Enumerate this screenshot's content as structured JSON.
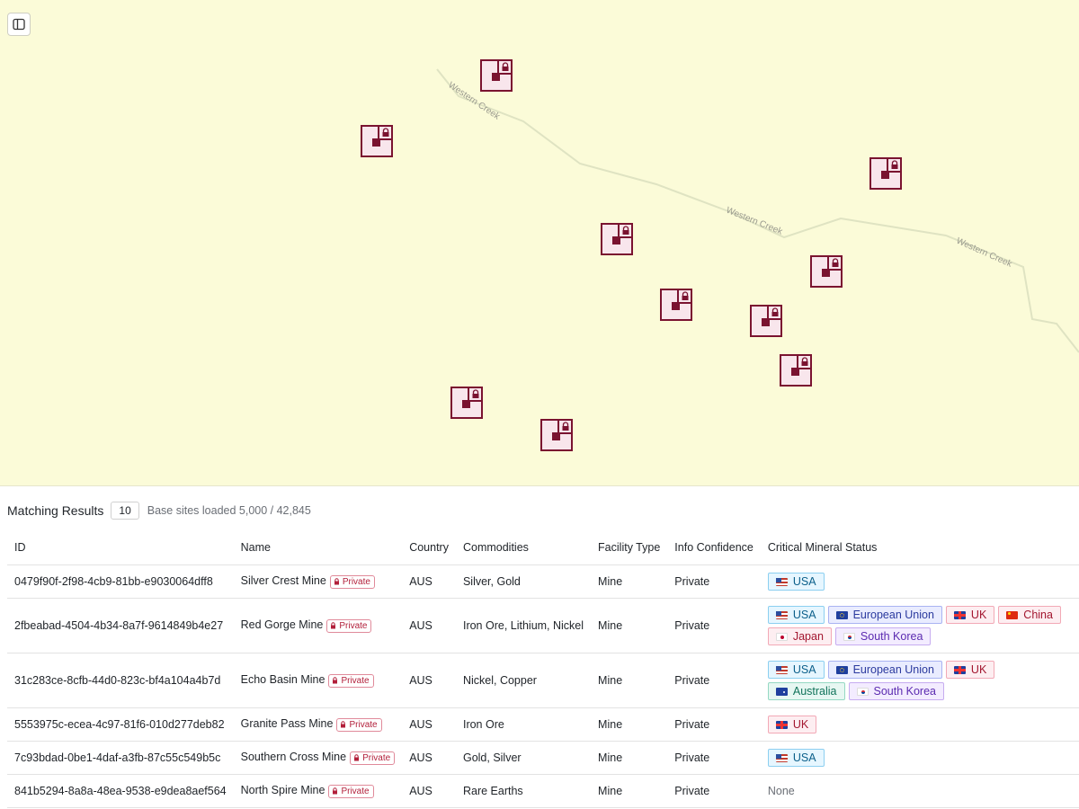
{
  "map": {
    "creek_labels": [
      "Western Creek",
      "Western Creek",
      "Western Creek"
    ],
    "colors": {
      "background": "#fbfbd8",
      "site_fill": "#f8e6ec",
      "site_stroke": "#7a1330"
    },
    "site_icon": "private-mine-lock-icon",
    "toggle_icon": "sidebar-toggle-icon",
    "site_count": 10
  },
  "results": {
    "title": "Matching Results",
    "count": "10",
    "loaded_text": "Base sites loaded 5,000 / 42,845",
    "columns": [
      "ID",
      "Name",
      "Country",
      "Commodities",
      "Facility Type",
      "Info Confidence",
      "Critical Mineral Status"
    ],
    "private_label": "Private",
    "rows": [
      {
        "id": "0479f90f-2f98-4cb9-81bb-e9030064dff8",
        "name": "Silver Crest Mine",
        "country": "AUS",
        "commodities": "Silver, Gold",
        "facility_type": "Mine",
        "confidence": "Private",
        "status": [
          {
            "label": "USA"
          }
        ]
      },
      {
        "id": "2fbeabad-4504-4b34-8a7f-9614849b4e27",
        "name": "Red Gorge Mine",
        "country": "AUS",
        "commodities": "Iron Ore, Lithium, Nickel",
        "facility_type": "Mine",
        "confidence": "Private",
        "status": [
          {
            "label": "USA"
          },
          {
            "label": "European Union"
          },
          {
            "label": "UK"
          },
          {
            "label": "China"
          },
          {
            "label": "Japan"
          },
          {
            "label": "South Korea"
          }
        ]
      },
      {
        "id": "31c283ce-8cfb-44d0-823c-bf4a104a4b7d",
        "name": "Echo Basin Mine",
        "country": "AUS",
        "commodities": "Nickel, Copper",
        "facility_type": "Mine",
        "confidence": "Private",
        "status": [
          {
            "label": "USA"
          },
          {
            "label": "European Union"
          },
          {
            "label": "UK"
          },
          {
            "label": "Australia"
          },
          {
            "label": "South Korea"
          }
        ]
      },
      {
        "id": "5553975c-ecea-4c97-81f6-010d277deb82",
        "name": "Granite Pass Mine",
        "country": "AUS",
        "commodities": "Iron Ore",
        "facility_type": "Mine",
        "confidence": "Private",
        "status": [
          {
            "label": "UK"
          }
        ]
      },
      {
        "id": "7c93bdad-0be1-4daf-a3fb-87c55c549b5c",
        "name": "Southern Cross Mine",
        "country": "AUS",
        "commodities": "Gold, Silver",
        "facility_type": "Mine",
        "confidence": "Private",
        "status": [
          {
            "label": "USA"
          }
        ]
      },
      {
        "id": "841b5294-8a8a-48ea-9538-e9dea8aef564",
        "name": "North Spire Mine",
        "country": "AUS",
        "commodities": "Rare Earths",
        "facility_type": "Mine",
        "confidence": "Private",
        "status_text": "None"
      }
    ]
  }
}
